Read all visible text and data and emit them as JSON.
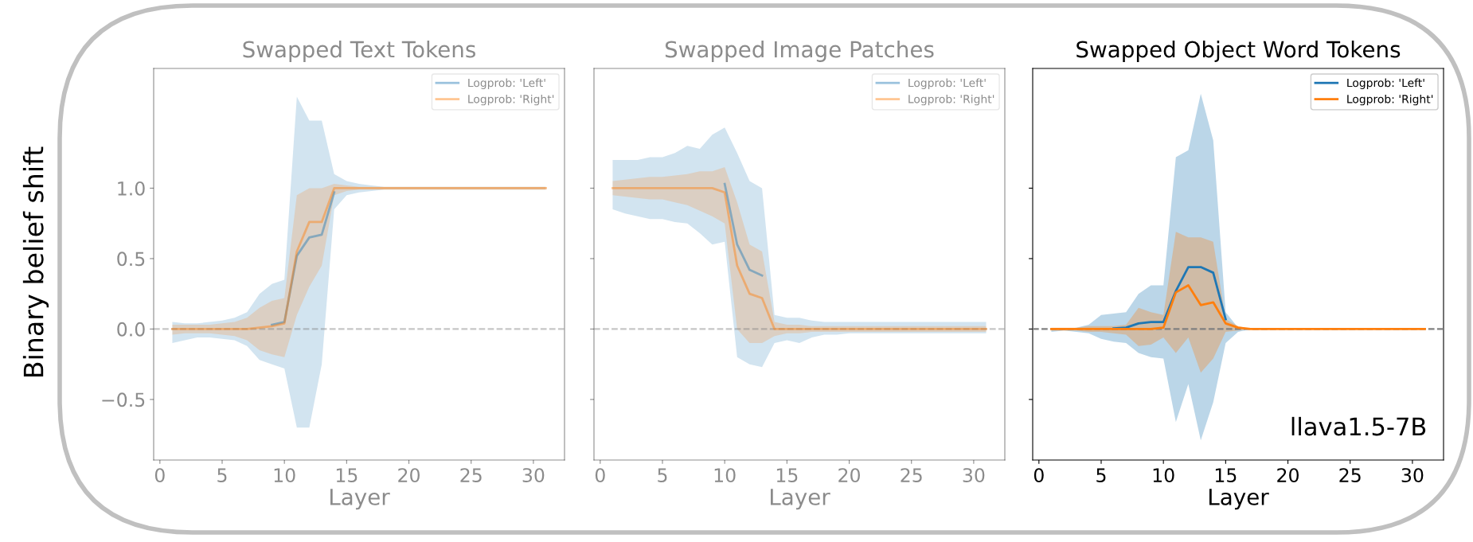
{
  "chart_data": [
    {
      "type": "line",
      "title": "Swapped Text Tokens",
      "xlabel": "Layer",
      "ylabel": "Binary belief shift",
      "x": [
        1,
        2,
        3,
        4,
        5,
        6,
        7,
        8,
        9,
        10,
        11,
        12,
        13,
        14,
        15,
        16,
        17,
        18,
        19,
        20,
        21,
        22,
        23,
        24,
        25,
        26,
        27,
        28,
        29,
        30,
        31
      ],
      "series": [
        {
          "name": "Logprob: 'Left'",
          "color": "#1f77b4",
          "values": [
            null,
            null,
            null,
            null,
            null,
            null,
            null,
            null,
            0.03,
            0.05,
            0.52,
            0.65,
            0.67,
            0.97,
            null,
            null,
            null,
            null,
            null,
            null,
            null,
            null,
            null,
            null,
            null,
            null,
            null,
            null,
            null,
            null,
            null
          ],
          "lower": [
            -0.1,
            -0.08,
            -0.06,
            -0.06,
            -0.07,
            -0.08,
            -0.12,
            -0.22,
            -0.25,
            -0.28,
            -0.7,
            -0.7,
            -0.25,
            0.85,
            0.95,
            0.97,
            0.98,
            0.99,
            0.99,
            0.99,
            0.99,
            0.99,
            0.99,
            0.99,
            0.99,
            0.99,
            0.99,
            0.99,
            0.99,
            0.99,
            0.99
          ],
          "upper": [
            0.05,
            0.04,
            0.04,
            0.05,
            0.06,
            0.08,
            0.12,
            0.25,
            0.32,
            0.35,
            1.65,
            1.48,
            1.48,
            1.1,
            1.05,
            1.03,
            1.02,
            1.01,
            1.01,
            1.01,
            1.01,
            1.01,
            1.01,
            1.01,
            1.01,
            1.01,
            1.01,
            1.01,
            1.01,
            1.01,
            1.01
          ]
        },
        {
          "name": "Logprob: 'Right'",
          "color": "#ff7f0e",
          "values": [
            0,
            0,
            0,
            0,
            0,
            0,
            0,
            0.01,
            0.02,
            0.04,
            0.55,
            0.76,
            0.76,
            1.0,
            1.0,
            1.0,
            1.0,
            1.0,
            1.0,
            1.0,
            1.0,
            1.0,
            1.0,
            1.0,
            1.0,
            1.0,
            1.0,
            1.0,
            1.0,
            1.0,
            1.0
          ],
          "lower": [
            -0.04,
            -0.03,
            -0.03,
            -0.03,
            -0.04,
            -0.05,
            -0.08,
            -0.15,
            -0.18,
            -0.2,
            0.1,
            0.3,
            0.45,
            0.95,
            0.98,
            0.99,
            0.99,
            0.99,
            0.99,
            0.99,
            0.99,
            0.99,
            0.99,
            0.99,
            0.99,
            0.99,
            0.99,
            0.99,
            0.99,
            0.99,
            0.99
          ],
          "upper": [
            0.03,
            0.03,
            0.03,
            0.03,
            0.04,
            0.05,
            0.08,
            0.15,
            0.2,
            0.22,
            0.95,
            1.0,
            1.0,
            1.03,
            1.02,
            1.01,
            1.01,
            1.01,
            1.01,
            1.01,
            1.01,
            1.01,
            1.01,
            1.01,
            1.01,
            1.01,
            1.01,
            1.01,
            1.01,
            1.01,
            1.01
          ]
        }
      ],
      "xlim": [
        -0.5,
        32.5
      ],
      "ylim": [
        -0.93,
        1.85
      ],
      "xticks": [
        0,
        5,
        10,
        15,
        20,
        25,
        30
      ],
      "yticks": [
        {
          "value": -0.5,
          "label": "−0.5"
        },
        {
          "value": 0.0,
          "label": "0.0"
        },
        {
          "value": 0.5,
          "label": "0.5"
        },
        {
          "value": 1.0,
          "label": "1.0"
        }
      ],
      "ref_lines": [
        {
          "axis": "y",
          "value": 0,
          "color": "#808080",
          "line_style": "dashed"
        }
      ],
      "legend": "top right",
      "grid": false,
      "line_style": "solid",
      "marker": "none"
    },
    {
      "type": "line",
      "title": "Swapped Image Patches",
      "xlabel": "Layer",
      "x": [
        1,
        2,
        3,
        4,
        5,
        6,
        7,
        8,
        9,
        10,
        11,
        12,
        13,
        14,
        15,
        16,
        17,
        18,
        19,
        20,
        21,
        22,
        23,
        24,
        25,
        26,
        27,
        28,
        29,
        30,
        31
      ],
      "series": [
        {
          "name": "Logprob: 'Left'",
          "color": "#1f77b4",
          "values": [
            null,
            null,
            null,
            null,
            null,
            null,
            null,
            null,
            null,
            1.03,
            0.6,
            0.42,
            0.38,
            null,
            null,
            null,
            null,
            null,
            null,
            null,
            null,
            null,
            null,
            null,
            null,
            null,
            null,
            null,
            null,
            null,
            null
          ],
          "lower": [
            0.85,
            0.82,
            0.8,
            0.78,
            0.78,
            0.76,
            0.75,
            0.68,
            0.6,
            0.62,
            -0.2,
            -0.25,
            -0.27,
            -0.1,
            -0.08,
            -0.1,
            -0.06,
            -0.04,
            -0.04,
            -0.03,
            -0.03,
            -0.03,
            -0.03,
            -0.03,
            -0.03,
            -0.03,
            -0.03,
            -0.03,
            -0.03,
            -0.03,
            -0.03
          ],
          "upper": [
            1.2,
            1.2,
            1.2,
            1.22,
            1.22,
            1.25,
            1.3,
            1.28,
            1.38,
            1.43,
            1.25,
            1.05,
            1.0,
            0.1,
            0.08,
            0.08,
            0.06,
            0.05,
            0.05,
            0.05,
            0.05,
            0.05,
            0.05,
            0.05,
            0.05,
            0.05,
            0.05,
            0.05,
            0.05,
            0.05,
            0.05
          ]
        },
        {
          "name": "Logprob: 'Right'",
          "color": "#ff7f0e",
          "values": [
            1.0,
            1.0,
            1.0,
            1.0,
            1.0,
            1.0,
            1.0,
            1.0,
            1.0,
            0.97,
            0.45,
            0.25,
            0.22,
            0.0,
            0,
            0,
            0,
            0,
            0,
            0,
            0,
            0,
            0,
            0,
            0,
            0,
            0,
            0,
            0,
            0,
            0
          ],
          "lower": [
            0.95,
            0.94,
            0.93,
            0.92,
            0.92,
            0.9,
            0.88,
            0.84,
            0.8,
            0.75,
            0.0,
            -0.1,
            -0.1,
            -0.05,
            -0.03,
            -0.03,
            -0.02,
            -0.02,
            -0.02,
            -0.02,
            -0.02,
            -0.02,
            -0.02,
            -0.02,
            -0.02,
            -0.02,
            -0.02,
            -0.02,
            -0.02,
            -0.02,
            -0.02
          ],
          "upper": [
            1.05,
            1.06,
            1.07,
            1.08,
            1.08,
            1.09,
            1.1,
            1.12,
            1.12,
            1.15,
            0.9,
            0.6,
            0.55,
            0.05,
            0.03,
            0.03,
            0.02,
            0.02,
            0.02,
            0.02,
            0.02,
            0.02,
            0.02,
            0.02,
            0.02,
            0.02,
            0.02,
            0.02,
            0.02,
            0.02,
            0.02
          ]
        }
      ],
      "xlim": [
        -0.5,
        32.5
      ],
      "ylim": [
        -0.93,
        1.85
      ],
      "xticks": [
        0,
        5,
        10,
        15,
        20,
        25,
        30
      ],
      "yticks": [
        -0.5,
        0.0,
        0.5,
        1.0
      ],
      "tick_labels": "x",
      "ref_lines": [
        {
          "axis": "y",
          "value": 0,
          "color": "#808080",
          "line_style": "dashed"
        }
      ],
      "legend": "top right",
      "grid": false,
      "line_style": "solid",
      "marker": "none"
    },
    {
      "type": "line",
      "title": "Swapped Object Word Tokens",
      "xlabel": "Layer",
      "annotations": [
        "llava1.5-7B"
      ],
      "x": [
        1,
        2,
        3,
        4,
        5,
        6,
        7,
        8,
        9,
        10,
        11,
        12,
        13,
        14,
        15,
        16,
        17,
        18,
        19,
        20,
        21,
        22,
        23,
        24,
        25,
        26,
        27,
        28,
        29,
        30,
        31
      ],
      "series": [
        {
          "name": "Logprob: 'Left'",
          "color": "#1f77b4",
          "values": [
            null,
            null,
            null,
            null,
            null,
            0.005,
            0.01,
            0.04,
            0.05,
            0.05,
            0.27,
            0.44,
            0.44,
            0.4,
            0.07,
            null,
            null,
            null,
            null,
            null,
            null,
            null,
            null,
            null,
            null,
            null,
            null,
            null,
            null,
            null,
            null
          ],
          "lower": [
            -0.02,
            -0.01,
            -0.02,
            -0.03,
            -0.07,
            -0.09,
            -0.1,
            -0.17,
            -0.2,
            -0.21,
            -0.66,
            -0.39,
            -0.79,
            -0.52,
            -0.1,
            -0.02,
            0,
            0,
            0,
            0,
            0,
            0,
            0,
            0,
            0,
            0,
            0,
            0,
            0,
            0,
            0
          ],
          "upper": [
            0,
            0,
            0.01,
            0.03,
            0.1,
            0.11,
            0.12,
            0.25,
            0.31,
            0.31,
            1.22,
            1.27,
            1.67,
            1.34,
            0.12,
            0.01,
            0,
            0,
            0,
            0,
            0,
            0,
            0,
            0,
            0,
            0,
            0,
            0,
            0,
            0,
            0
          ]
        },
        {
          "name": "Logprob: 'Right'",
          "color": "#ff7f0e",
          "values": [
            0,
            0,
            0,
            0,
            0,
            0,
            0,
            0,
            0,
            0.01,
            0.26,
            0.31,
            0.17,
            0.19,
            0.04,
            0.01,
            0,
            0,
            0,
            0,
            0,
            0,
            0,
            0,
            0,
            0,
            0,
            0,
            0,
            0,
            0
          ],
          "lower": [
            -0.01,
            -0.01,
            -0.01,
            -0.02,
            -0.02,
            -0.03,
            -0.04,
            -0.12,
            -0.11,
            -0.06,
            -0.17,
            -0.06,
            -0.31,
            -0.21,
            -0.02,
            -0.01,
            0,
            0,
            0,
            0,
            0,
            0,
            0,
            0,
            0,
            0,
            0,
            0,
            0,
            0,
            0
          ],
          "upper": [
            0.01,
            0.01,
            0.01,
            0.02,
            0.02,
            0.02,
            0.03,
            0.15,
            0.12,
            0.1,
            0.69,
            0.65,
            0.65,
            0.62,
            0.07,
            0.02,
            0,
            0,
            0,
            0,
            0,
            0,
            0,
            0,
            0,
            0,
            0,
            0,
            0,
            0,
            0
          ]
        }
      ],
      "xlim": [
        -0.5,
        32.5
      ],
      "ylim": [
        -0.93,
        1.85
      ],
      "xticks": [
        0,
        5,
        10,
        15,
        20,
        25,
        30
      ],
      "yticks": [
        -0.5,
        0.0,
        0.5,
        1.0
      ],
      "tick_labels": "x",
      "ref_lines": [
        {
          "axis": "y",
          "value": 0,
          "color": "#808080",
          "line_style": "dashed"
        }
      ],
      "legend": "top right",
      "grid": false,
      "line_style": "solid",
      "marker": "none"
    }
  ]
}
